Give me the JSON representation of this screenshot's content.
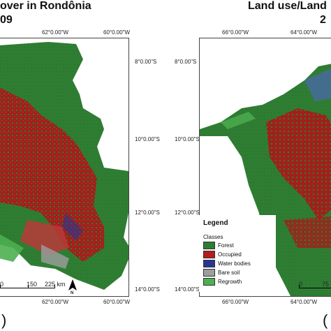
{
  "left_map": {
    "title_line1": "over in Rondônia",
    "title_line2": "09",
    "top_coords": [
      "62°0.00\"W",
      "60°0.00\"W"
    ],
    "bottom_coords": [
      "62°0.00\"W",
      "60°0.00\"W"
    ],
    "right_coords": [
      "8°0.00\"S",
      "10°0.00\"S",
      "12°0.00\"S",
      "14°0.00\"S"
    ],
    "scale_labels": [
      "0",
      "150",
      "225 km"
    ],
    "north_label": "N",
    "panel_label": ")"
  },
  "right_map": {
    "title_line1": "Land use/Land",
    "title_line2": "2",
    "top_coords": [
      "66°0.00\"W",
      "64°0.00\"W"
    ],
    "bottom_coords": [
      "66°0.00\"W",
      "64°0.00\"W"
    ],
    "left_coords": [
      "8°0.00\"S",
      "10°0.00\"S",
      "12°0.00\"S",
      "14°0.00\"S"
    ],
    "scale_labels": [
      "0",
      "75"
    ],
    "panel_label": "("
  },
  "legend": {
    "title": "Legend",
    "subtitle": "Classes",
    "items": [
      {
        "label": "Forest",
        "color": "#2e7d32"
      },
      {
        "label": "Occupied",
        "color": "#b71c1c"
      },
      {
        "label": "Water bodies",
        "color": "#283593"
      },
      {
        "label": "Bare soil",
        "color": "#9e9e9e"
      },
      {
        "label": "Regrowth",
        "color": "#4caf50"
      }
    ]
  }
}
